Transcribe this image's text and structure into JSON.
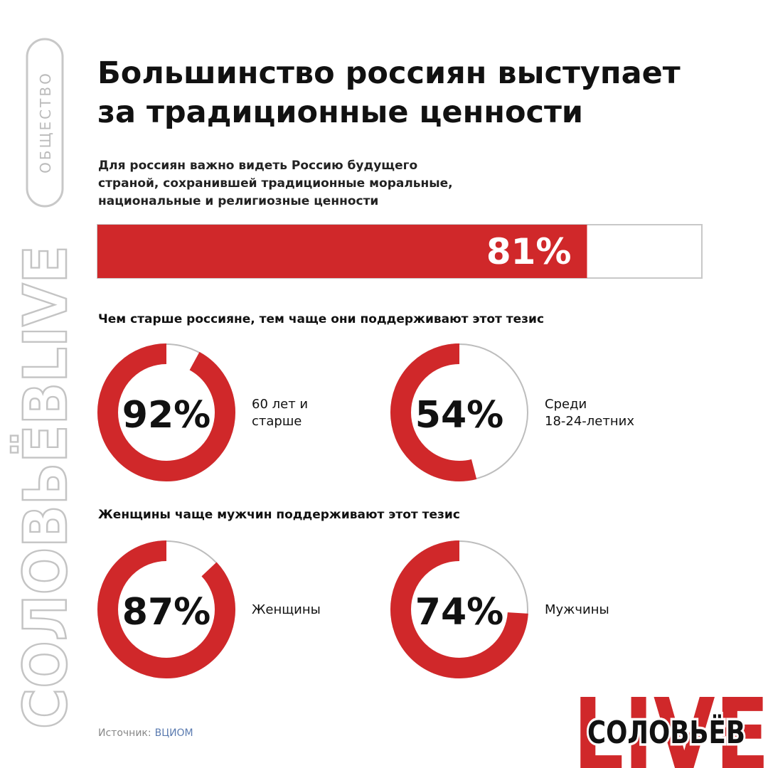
{
  "side_tag": "ОБЩЕСТВО",
  "side_brand": "СОЛОВЬЁВLIVE",
  "title_lines": [
    "Большинство россиян выступает",
    "за традиционные ценности"
  ],
  "subtitle_lines": [
    "Для россиян важно видеть Россию будущего",
    "страной, сохранившей традиционные моральные,",
    "национальные и религиозные ценности"
  ],
  "bar": {
    "value": 81,
    "value_label": "81%",
    "color": "#d0282a",
    "max": 100
  },
  "sections": [
    {
      "heading": "Чем старше россияне, тем чаще они поддерживают этот тезис",
      "donuts": [
        {
          "value": 92,
          "value_label": "92%",
          "label_lines": [
            "60 лет и",
            "старше"
          ]
        },
        {
          "value": 54,
          "value_label": "54%",
          "label_lines": [
            "Среди",
            "18-24-летних"
          ]
        }
      ]
    },
    {
      "heading": "Женщины чаще мужчин поддерживают этот тезис",
      "donuts": [
        {
          "value": 87,
          "value_label": "87%",
          "label_lines": [
            "Женщины"
          ]
        },
        {
          "value": 74,
          "value_label": "74%",
          "label_lines": [
            "Мужчины"
          ]
        }
      ]
    }
  ],
  "source": {
    "label": "Источник:",
    "name": "ВЦИОМ"
  },
  "logo": {
    "big": "LIVE",
    "small": "СОЛОВЬЁВ"
  }
}
